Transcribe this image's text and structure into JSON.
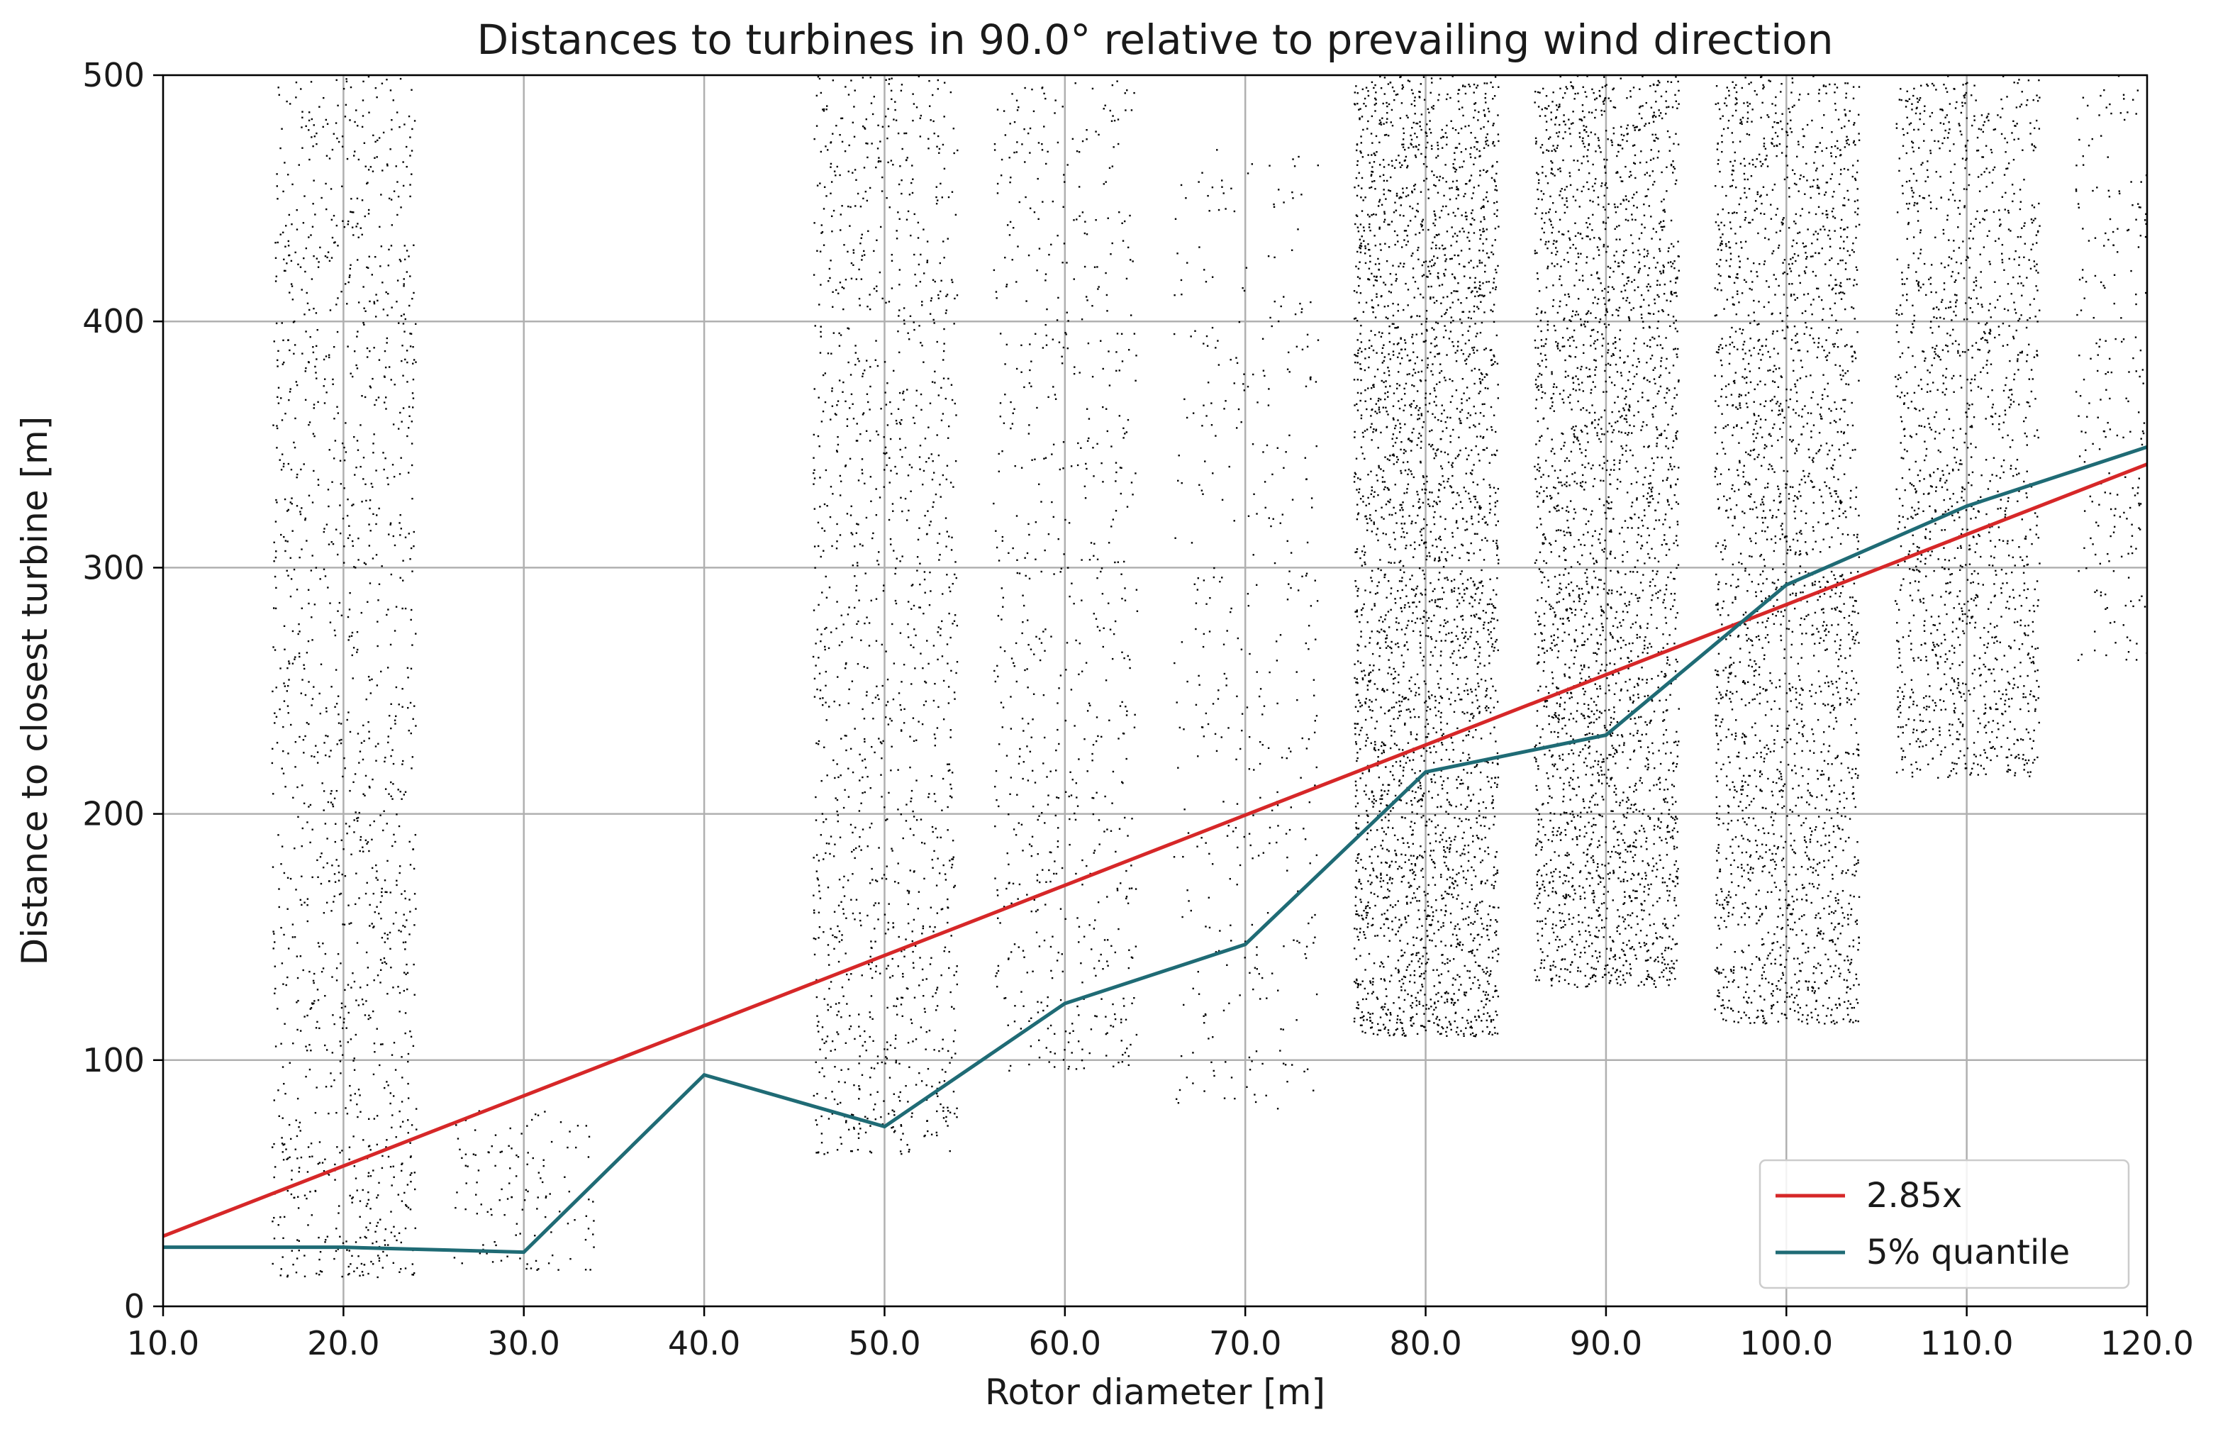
{
  "chart_data": {
    "type": "scatter",
    "title": "Distances to turbines in 90.0° relative to prevailing wind direction",
    "xlabel": "Rotor diameter [m]",
    "ylabel": "Distance to closest turbine [m]",
    "xlim": [
      10,
      120
    ],
    "ylim": [
      0,
      500
    ],
    "xticks": [
      "10.0",
      "20.0",
      "30.0",
      "40.0",
      "50.0",
      "60.0",
      "70.0",
      "80.0",
      "90.0",
      "100.0",
      "110.0",
      "120.0"
    ],
    "yticks": [
      "0",
      "100",
      "200",
      "300",
      "400",
      "500"
    ],
    "grid": true,
    "legend_position": "lower-right",
    "colors": {
      "points": "#000000",
      "fit": "#d62728",
      "quantile": "#1f6b75",
      "grid": "#b0b0b0"
    },
    "scatter_clusters": [
      {
        "x_center": 20,
        "x_halfwidth": 4,
        "y_min": 12,
        "y_max": 500,
        "count": 1400
      },
      {
        "x_center": 30,
        "x_halfwidth": 4,
        "y_min": 15,
        "y_max": 80,
        "count": 120
      },
      {
        "x_center": 50,
        "x_halfwidth": 4,
        "y_min": 62,
        "y_max": 500,
        "count": 1300
      },
      {
        "x_center": 60,
        "x_halfwidth": 4,
        "y_min": 95,
        "y_max": 500,
        "count": 700
      },
      {
        "x_center": 70,
        "x_halfwidth": 4,
        "y_min": 80,
        "y_max": 470,
        "count": 400
      },
      {
        "x_center": 80,
        "x_halfwidth": 4,
        "y_min": 110,
        "y_max": 500,
        "count": 3200
      },
      {
        "x_center": 90,
        "x_halfwidth": 4,
        "y_min": 130,
        "y_max": 500,
        "count": 2800
      },
      {
        "x_center": 100,
        "x_halfwidth": 4,
        "y_min": 115,
        "y_max": 500,
        "count": 2400
      },
      {
        "x_center": 110,
        "x_halfwidth": 4,
        "y_min": 215,
        "y_max": 500,
        "count": 1500
      },
      {
        "x_center": 120,
        "x_halfwidth": 4,
        "y_min": 260,
        "y_max": 500,
        "count": 450
      }
    ],
    "series": [
      {
        "name": "2.85x",
        "type": "line",
        "x": [
          10,
          120
        ],
        "y": [
          28.5,
          342
        ]
      },
      {
        "name": "5% quantile",
        "type": "line",
        "x": [
          10,
          20,
          30,
          40,
          50,
          60,
          70,
          80,
          90,
          100,
          110,
          120
        ],
        "y": [
          24,
          24,
          22,
          94,
          73,
          123,
          147,
          217,
          232,
          293,
          325,
          349
        ]
      }
    ]
  }
}
